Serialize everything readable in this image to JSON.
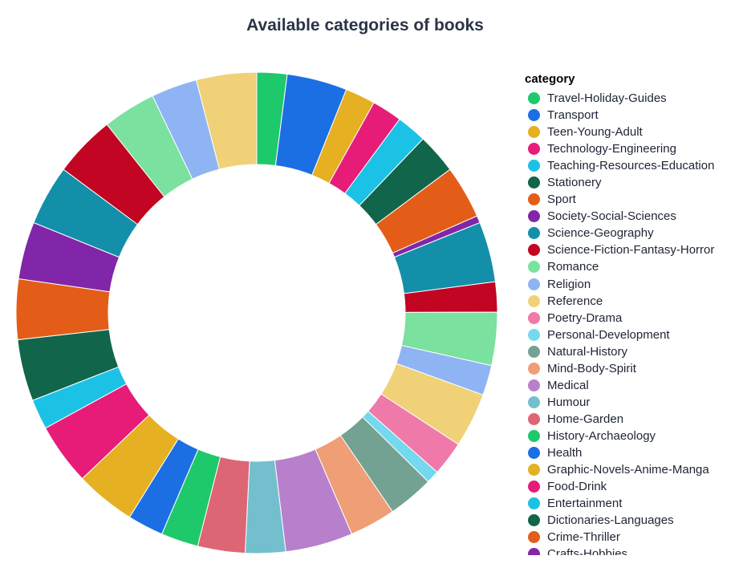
{
  "chart_data": {
    "type": "pie",
    "title": "Available categories of books",
    "legend_title": "category",
    "legend_position": "right",
    "slices": [
      {
        "label": "Travel-Holiday-Guides",
        "value": 2.1,
        "color": "#1ec96b"
      },
      {
        "label": "Transport",
        "value": 4.2,
        "color": "#1c6fe3"
      },
      {
        "label": "Teen-Young-Adult",
        "value": 2.1,
        "color": "#e5b021"
      },
      {
        "label": "Technology-Engineering",
        "value": 2.1,
        "color": "#e71c78"
      },
      {
        "label": "Teaching-Resources-Education",
        "value": 2.1,
        "color": "#1bc2e5"
      },
      {
        "label": "Stationery",
        "value": 2.8,
        "color": "#11654a"
      },
      {
        "label": "Sport",
        "value": 3.7,
        "color": "#e35d18"
      },
      {
        "label": "Society-Social-Sciences",
        "value": 0.5,
        "color": "#8126a8"
      },
      {
        "label": "Science-Geography",
        "value": 4.2,
        "color": "#138fa9"
      },
      {
        "label": "Science-Fiction-Fantasy-Horror",
        "value": 2.1,
        "color": "#c10522"
      },
      {
        "label": "Romance",
        "value": 3.7,
        "color": "#7ae19f"
      },
      {
        "label": "Religion",
        "value": 2.1,
        "color": "#8fb4f3"
      },
      {
        "label": "Reference",
        "value": 3.8,
        "color": "#f0d178"
      },
      {
        "label": "Poetry-Drama",
        "value": 2.4,
        "color": "#ef79a8"
      },
      {
        "label": "Personal-Development",
        "value": 0.9,
        "color": "#74d8ef"
      },
      {
        "label": "Natural-History",
        "value": 3.2,
        "color": "#74a292"
      },
      {
        "label": "Mind-Body-Spirit",
        "value": 3.2,
        "color": "#ef9e76"
      },
      {
        "label": "Medical",
        "value": 4.7,
        "color": "#b880cc"
      },
      {
        "label": "Humour",
        "value": 2.8,
        "color": "#73bfcd"
      },
      {
        "label": "Home-Garden",
        "value": 3.3,
        "color": "#dd6675"
      },
      {
        "label": "History-Archaeology",
        "value": 2.6,
        "color": "#1ec96b"
      },
      {
        "label": "Health",
        "value": 2.5,
        "color": "#1c6fe3"
      },
      {
        "label": "Graphic-Novels-Anime-Manga",
        "value": 4.2,
        "color": "#e5b021"
      },
      {
        "label": "Food-Drink",
        "value": 4.3,
        "color": "#e71c78"
      },
      {
        "label": "Entertainment",
        "value": 2.1,
        "color": "#1bc2e5"
      },
      {
        "label": "Dictionaries-Languages",
        "value": 4.3,
        "color": "#11654a"
      },
      {
        "label": "Crime-Thriller",
        "value": 4.2,
        "color": "#e35d18"
      },
      {
        "label": "Crafts-Hobbies",
        "value": 4.0,
        "color": "#8126a8"
      },
      {
        "label": "",
        "value": 4.2,
        "color": "#138fa9"
      },
      {
        "label": "",
        "value": 4.3,
        "color": "#c10522"
      },
      {
        "label": "",
        "value": 3.7,
        "color": "#7ae19f"
      },
      {
        "label": "",
        "value": 3.2,
        "color": "#8fb4f3"
      },
      {
        "label": "",
        "value": 4.2,
        "color": "#f0d178"
      }
    ]
  }
}
